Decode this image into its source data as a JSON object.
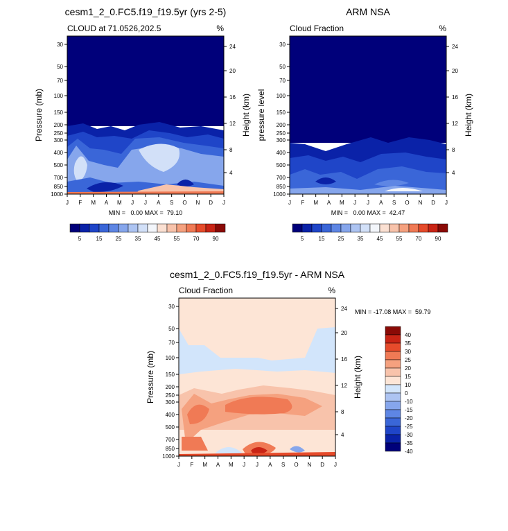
{
  "colors": {
    "sequential_palette": [
      "#00007a",
      "#0a22a8",
      "#1f45c8",
      "#3a66d8",
      "#5e86e4",
      "#86a6ec",
      "#adc4f2",
      "#d2e0f8",
      "#f3f6fb",
      "#fbe0d2",
      "#f8c3ab",
      "#f5a17f",
      "#f07a55",
      "#e64b2b",
      "#c92415",
      "#8a0a06"
    ],
    "diff_palette": [
      "#00007a",
      "#0a22a8",
      "#1f45c8",
      "#3a66d8",
      "#5e86e4",
      "#86a6ec",
      "#adc4f2",
      "#d2e5fb",
      "#fde5d6",
      "#f8c3ab",
      "#f5a17f",
      "#f07a55",
      "#e64b2b",
      "#c92415",
      "#8a0a06"
    ]
  },
  "chart_data": [
    {
      "type": "heatmap",
      "title": "cesm1_2_0.FC5.f19_f19.5yr (yrs 2-5)",
      "left_label": "CLOUD at 71.0526,202.5",
      "unit": "%",
      "xlabel": "",
      "ylabel": "Pressure (mb)",
      "y2label": "Height (km)",
      "x_ticks": [
        "J",
        "F",
        "M",
        "A",
        "M",
        "J",
        "J",
        "A",
        "S",
        "O",
        "N",
        "D",
        "J"
      ],
      "y_ticks": [
        "30",
        "50",
        "70",
        "100",
        "150",
        "200",
        "250",
        "300",
        "400",
        "500",
        "700",
        "850",
        "1000"
      ],
      "y2_ticks": [
        "24",
        "20",
        "16",
        "12",
        "8",
        "4"
      ],
      "stats": "MIN =   0.00 MAX =  79.10",
      "colorbar": {
        "labels": [
          "5",
          "15",
          "25",
          "35",
          "45",
          "55",
          "70",
          "90"
        ]
      },
      "value_range": [
        0,
        79.1
      ]
    },
    {
      "type": "heatmap",
      "title": "ARM NSA",
      "left_label": "Cloud Fraction",
      "unit": "%",
      "xlabel": "",
      "ylabel": "pressure level",
      "y2label": "Height (km)",
      "x_ticks": [
        "J",
        "F",
        "M",
        "A",
        "M",
        "J",
        "J",
        "A",
        "S",
        "O",
        "N",
        "D",
        "J"
      ],
      "y_ticks": [
        "30",
        "50",
        "70",
        "100",
        "150",
        "200",
        "250",
        "300",
        "400",
        "500",
        "700",
        "850",
        "1000"
      ],
      "y2_ticks": [
        "24",
        "20",
        "16",
        "12",
        "8",
        "4"
      ],
      "stats": "MIN =   0.00 MAX =  42.47",
      "colorbar": {
        "labels": [
          "5",
          "15",
          "25",
          "35",
          "45",
          "55",
          "70",
          "90"
        ]
      },
      "value_range": [
        0,
        42.47
      ]
    },
    {
      "type": "heatmap",
      "title": "cesm1_2_0.FC5.f19_f19.5yr - ARM NSA",
      "left_label": "Cloud Fraction",
      "unit": "%",
      "xlabel": "",
      "ylabel": "Pressure (mb)",
      "y2label": "Height (km)",
      "x_ticks": [
        "J",
        "F",
        "M",
        "A",
        "M",
        "J",
        "J",
        "A",
        "S",
        "O",
        "N",
        "D",
        "J"
      ],
      "y_ticks": [
        "30",
        "50",
        "70",
        "100",
        "150",
        "200",
        "250",
        "300",
        "400",
        "500",
        "700",
        "850",
        "1000"
      ],
      "y2_ticks": [
        "24",
        "20",
        "16",
        "12",
        "8",
        "4"
      ],
      "stats": "MIN = -17.08 MAX =  59.79",
      "colorbar": {
        "labels": [
          "40",
          "35",
          "30",
          "25",
          "20",
          "15",
          "10",
          "0",
          "-10",
          "-15",
          "-20",
          "-25",
          "-30",
          "-35",
          "-40"
        ]
      },
      "value_range": [
        -17.08,
        59.79
      ]
    }
  ]
}
